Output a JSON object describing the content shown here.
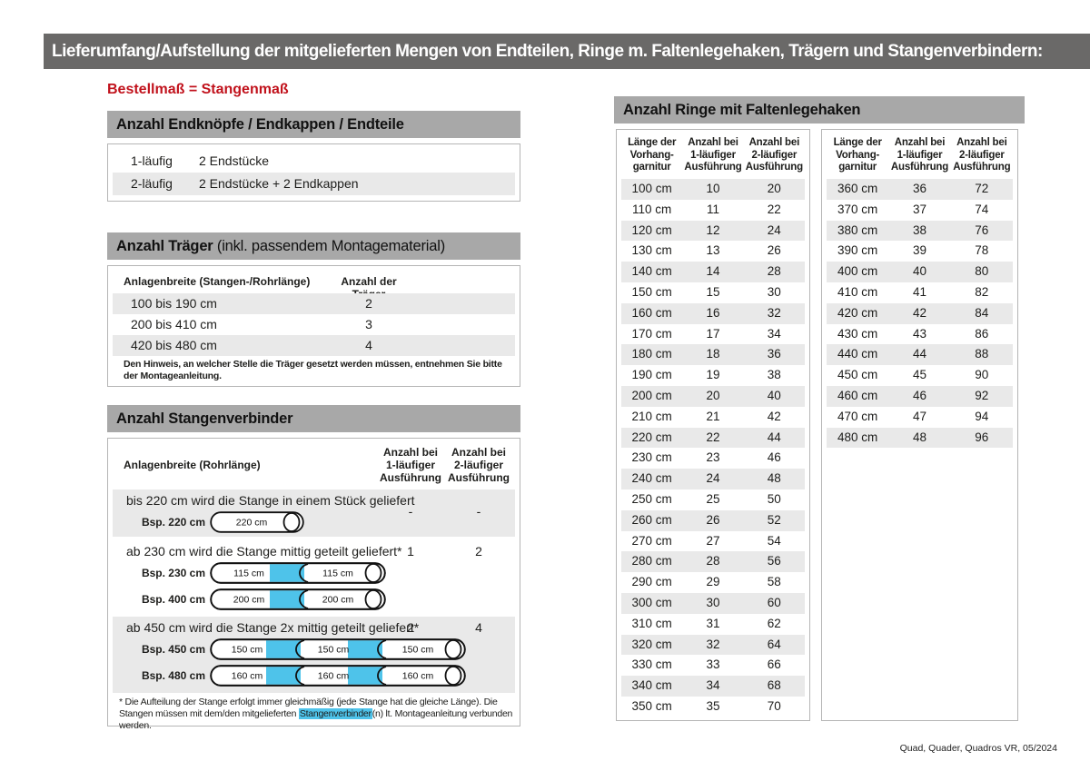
{
  "colors": {
    "accent_blue": "#4ec3ea",
    "red": "#c1121c",
    "bar_gray": "#6a6968",
    "header_gray": "#a8a8a8"
  },
  "page": {
    "title": "Lieferumfang/Aufstellung der mitgelieferten Mengen von Endteilen, Ringe m. Faltenlegehaken, Trägern und Stangenverbindern:",
    "subtitle": "Bestellmaß = Stangenmaß",
    "footer": "Quad, Quader, Quadros VR, 05/2024"
  },
  "endteile": {
    "title": "Anzahl Endknöpfe / Endkappen / Endteile",
    "rows": [
      {
        "type": "1-läufig",
        "parts": "2 Endstücke"
      },
      {
        "type": "2-läufig",
        "parts": "2 Endstücke + 2 Endkappen"
      }
    ]
  },
  "traeger": {
    "title": "Anzahl Träger",
    "title_suffix": " (inkl. passendem Montagematerial)",
    "col1": "Anlagenbreite (Stangen-/Rohrlänge)",
    "col2": "Anzahl der Träger",
    "rows": [
      {
        "range": "100 bis 190 cm",
        "count": "2"
      },
      {
        "range": "200 bis 410 cm",
        "count": "3"
      },
      {
        "range": "420 bis 480 cm",
        "count": "4"
      }
    ],
    "note": "Den Hinweis, an welcher Stelle die Träger gesetzt werden müssen, entnehmen Sie bitte der Montageanleitung."
  },
  "verbinder": {
    "title": "Anzahl Stangenverbinder",
    "col1": "Anlagenbreite (Rohrlänge)",
    "col2": "Anzahl bei\n1-läufiger\nAusführung",
    "col3": "Anzahl bei\n2-läufiger\nAusführung",
    "rows": [
      {
        "text": "bis 220 cm wird die Stange in einem Stück geliefert",
        "v1": "-",
        "v2": "-",
        "rods": [
          {
            "label": "Bsp. 220 cm",
            "segments": [
              "220 cm"
            ]
          }
        ]
      },
      {
        "text": "ab 230 cm wird die Stange mittig geteilt geliefert*",
        "v1": "1",
        "v2": "2",
        "rods": [
          {
            "label": "Bsp. 230 cm",
            "segments": [
              "115 cm",
              "115 cm"
            ]
          },
          {
            "label": "Bsp. 400 cm",
            "segments": [
              "200 cm",
              "200 cm"
            ]
          }
        ]
      },
      {
        "text": "ab 450 cm wird die Stange 2x mittig geteilt geliefert*",
        "v1": "2",
        "v2": "4",
        "rods": [
          {
            "label": "Bsp. 450 cm",
            "segments": [
              "150 cm",
              "150 cm",
              "150 cm"
            ]
          },
          {
            "label": "Bsp. 480 cm",
            "segments": [
              "160 cm",
              "160 cm",
              "160 cm"
            ]
          }
        ]
      }
    ],
    "footnote_1": "* Die Aufteilung der Stange erfolgt immer gleichmäßig (jede Stange hat die gleiche Länge). Die Stangen müssen mit dem/den mitgelieferten ",
    "footnote_highlight": "Stangenverbinder",
    "footnote_2": "(n) lt. Montageanleitung verbunden werden."
  },
  "ringe": {
    "title": "Anzahl Ringe mit Faltenlegehaken",
    "col_headers": [
      "Länge der\nVorhang-\ngarnitur",
      "Anzahl bei\n1-läufiger\nAusführung",
      "Anzahl bei\n2-läufiger\nAusführung"
    ],
    "table1": [
      [
        "100 cm",
        "10",
        "20"
      ],
      [
        "110 cm",
        "11",
        "22"
      ],
      [
        "120 cm",
        "12",
        "24"
      ],
      [
        "130 cm",
        "13",
        "26"
      ],
      [
        "140 cm",
        "14",
        "28"
      ],
      [
        "150 cm",
        "15",
        "30"
      ],
      [
        "160 cm",
        "16",
        "32"
      ],
      [
        "170 cm",
        "17",
        "34"
      ],
      [
        "180 cm",
        "18",
        "36"
      ],
      [
        "190 cm",
        "19",
        "38"
      ],
      [
        "200 cm",
        "20",
        "40"
      ],
      [
        "210 cm",
        "21",
        "42"
      ],
      [
        "220 cm",
        "22",
        "44"
      ],
      [
        "230 cm",
        "23",
        "46"
      ],
      [
        "240 cm",
        "24",
        "48"
      ],
      [
        "250 cm",
        "25",
        "50"
      ],
      [
        "260 cm",
        "26",
        "52"
      ],
      [
        "270 cm",
        "27",
        "54"
      ],
      [
        "280 cm",
        "28",
        "56"
      ],
      [
        "290 cm",
        "29",
        "58"
      ],
      [
        "300 cm",
        "30",
        "60"
      ],
      [
        "310 cm",
        "31",
        "62"
      ],
      [
        "320 cm",
        "32",
        "64"
      ],
      [
        "330 cm",
        "33",
        "66"
      ],
      [
        "340 cm",
        "34",
        "68"
      ],
      [
        "350 cm",
        "35",
        "70"
      ]
    ],
    "table2": [
      [
        "360 cm",
        "36",
        "72"
      ],
      [
        "370 cm",
        "37",
        "74"
      ],
      [
        "380 cm",
        "38",
        "76"
      ],
      [
        "390 cm",
        "39",
        "78"
      ],
      [
        "400 cm",
        "40",
        "80"
      ],
      [
        "410 cm",
        "41",
        "82"
      ],
      [
        "420 cm",
        "42",
        "84"
      ],
      [
        "430 cm",
        "43",
        "86"
      ],
      [
        "440 cm",
        "44",
        "88"
      ],
      [
        "450 cm",
        "45",
        "90"
      ],
      [
        "460 cm",
        "46",
        "92"
      ],
      [
        "470 cm",
        "47",
        "94"
      ],
      [
        "480 cm",
        "48",
        "96"
      ]
    ]
  }
}
